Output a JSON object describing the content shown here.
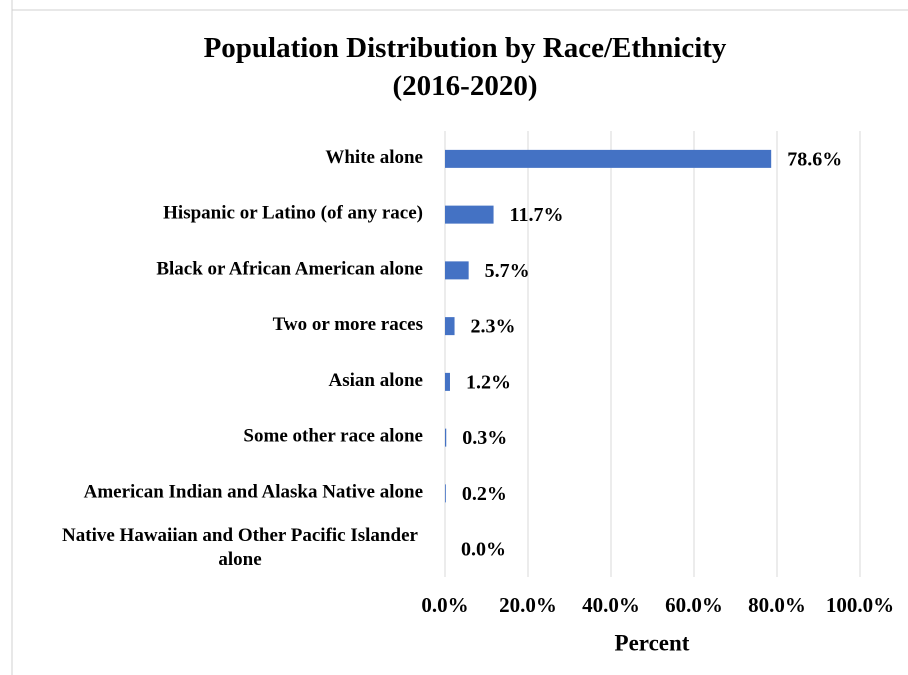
{
  "chart_data": {
    "type": "bar",
    "orientation": "horizontal",
    "title": "Population Distribution by Race/Ethnicity (2016-2020)",
    "x_label": "Percent",
    "categories": [
      "White alone",
      "Hispanic or Latino (of any race)",
      "Black or African American alone",
      "Two or more races",
      "Asian alone",
      "Some other race alone",
      "American Indian and Alaska Native alone",
      "Native Hawaiian and Other Pacific Islander alone"
    ],
    "values": [
      78.6,
      11.7,
      5.7,
      2.3,
      1.2,
      0.3,
      0.2,
      0.0
    ],
    "value_labels": [
      "78.6%",
      "11.7%",
      "5.7%",
      "2.3%",
      "1.2%",
      "0.3%",
      "0.2%",
      "0.0%"
    ],
    "color": "#4472c4",
    "xlim": [
      0,
      100
    ],
    "xticks": [
      {
        "value": 0,
        "label": "0.0%"
      },
      {
        "value": 20,
        "label": "20.0%"
      },
      {
        "value": 40,
        "label": "40.0%"
      },
      {
        "value": 60,
        "label": "60.0%"
      },
      {
        "value": 80,
        "label": "80.0%"
      },
      {
        "value": 100,
        "label": "100.0%"
      }
    ],
    "grid": true
  }
}
